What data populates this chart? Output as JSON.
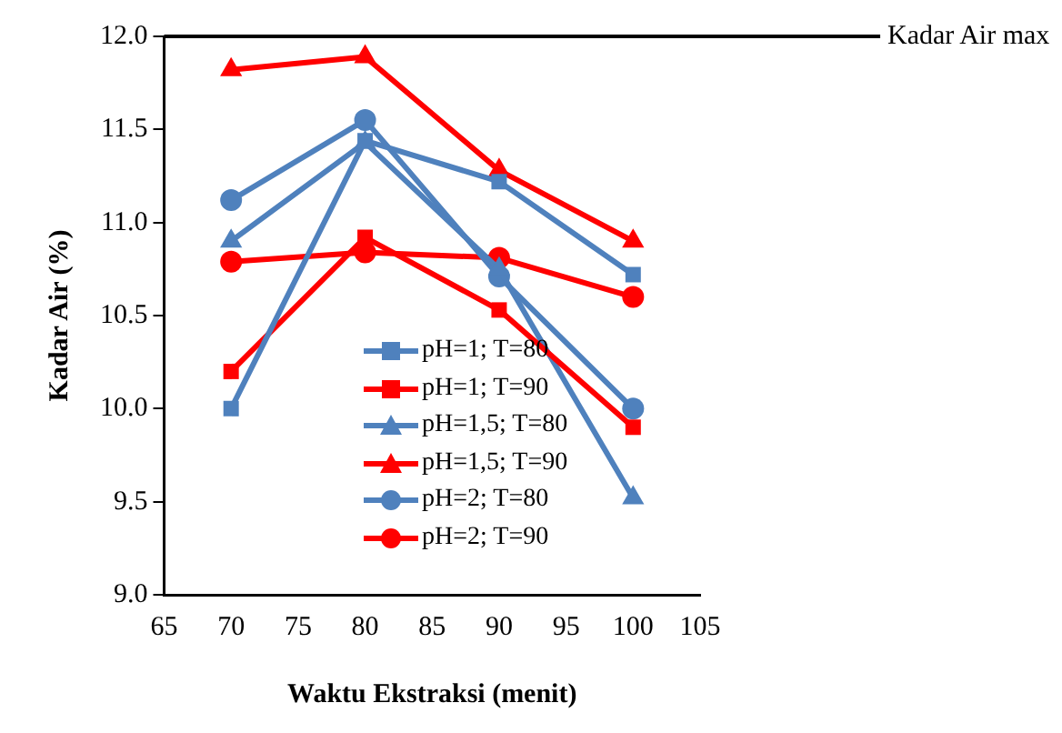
{
  "chart_data": {
    "type": "line",
    "xlabel": "Waktu Ekstraksi (menit)",
    "ylabel": "Kadar Air (%)",
    "x": [
      70,
      80,
      90,
      100
    ],
    "series": [
      {
        "name": "pH=1; T=80",
        "color": "#4f81bd",
        "marker": "square",
        "values": [
          10.0,
          11.44,
          11.22,
          10.72
        ]
      },
      {
        "name": "pH=1; T=90",
        "color": "#ff0000",
        "marker": "square",
        "values": [
          10.2,
          10.92,
          10.53,
          9.9
        ]
      },
      {
        "name": "pH=1,5; T=80",
        "color": "#4f81bd",
        "marker": "triangle",
        "values": [
          10.9,
          11.43,
          10.75,
          9.52
        ]
      },
      {
        "name": "pH=1,5; T=90",
        "color": "#ff0000",
        "marker": "triangle",
        "values": [
          11.82,
          11.89,
          11.28,
          10.9
        ]
      },
      {
        "name": "pH=2; T=80",
        "color": "#4f81bd",
        "marker": "circle",
        "values": [
          11.12,
          11.55,
          10.71,
          10.0
        ]
      },
      {
        "name": "pH=2; T=90",
        "color": "#ff0000",
        "marker": "circle",
        "values": [
          10.79,
          10.84,
          10.81,
          10.6
        ]
      }
    ],
    "xlim": [
      65,
      105
    ],
    "xticks": [
      65,
      70,
      75,
      80,
      85,
      90,
      95,
      100,
      105
    ],
    "ylim": [
      9,
      12
    ],
    "yticks": [
      {
        "value": 9,
        "label": "9.0"
      },
      {
        "value": 9.5,
        "label": "9.5"
      },
      {
        "value": 10,
        "label": "10.0"
      },
      {
        "value": 10.5,
        "label": "10.5"
      },
      {
        "value": 11,
        "label": "11.0"
      },
      {
        "value": 11.5,
        "label": "11.5"
      },
      {
        "value": 12,
        "label": "12.0"
      }
    ],
    "ref_lines": [
      {
        "axis": "y",
        "value": 12,
        "label": "Kadar Air max",
        "color": "#000000"
      }
    ],
    "grid": false,
    "legend": "bottom",
    "line_style": "solid"
  }
}
